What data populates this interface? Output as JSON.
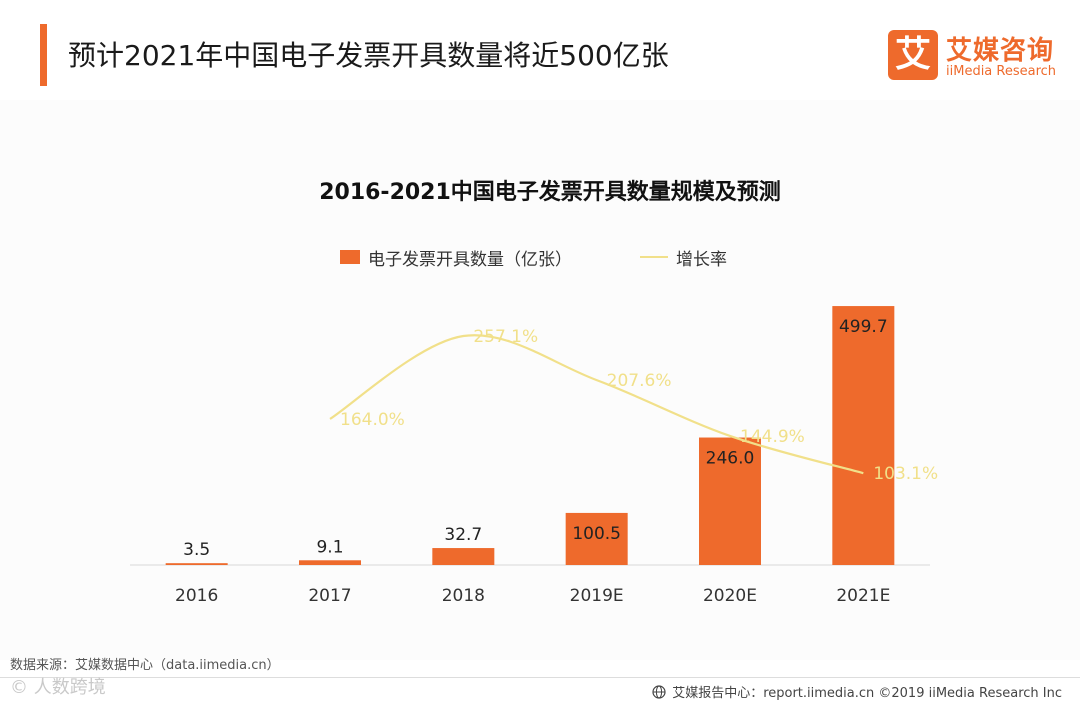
{
  "header": {
    "title": "预计2021年中国电子发票开具数量将近500亿张",
    "logo_mark": "艾",
    "logo_cn": "艾媒咨询",
    "logo_en": "iiMedia Research"
  },
  "colors": {
    "accent": "#ee6a2c",
    "growth_line": "#f1e08a",
    "bar_label": "#222222"
  },
  "chart_data": {
    "type": "bar",
    "title": "2016-2021中国电子发票开具数量规模及预测",
    "categories": [
      "2016",
      "2017",
      "2018",
      "2019E",
      "2020E",
      "2021E"
    ],
    "series": [
      {
        "name": "电子发票开具数量（亿张）",
        "type": "bar",
        "values": [
          3.5,
          9.1,
          32.7,
          100.5,
          246.0,
          499.7
        ],
        "labels": [
          "3.5",
          "9.1",
          "32.7",
          "100.5",
          "246.0",
          "499.7"
        ]
      },
      {
        "name": "增长率",
        "type": "line",
        "values": [
          null,
          164.0,
          257.1,
          207.6,
          144.9,
          103.1
        ],
        "labels": [
          "",
          "164.0%",
          "257.1%",
          "207.6%",
          "144.9%",
          "103.1%"
        ]
      }
    ],
    "xlabel": "",
    "ylabel": "",
    "ylim": [
      0,
      550
    ],
    "y2lim": [
      0,
      320
    ],
    "grid": false,
    "legend_position": "top-center"
  },
  "footer": {
    "source": "数据来源：艾媒数据中心（data.iimedia.cn）",
    "watermark": "© 人数跨境",
    "report": "艾媒报告中心：report.iimedia.cn ©2019  iiMedia Research  Inc"
  }
}
